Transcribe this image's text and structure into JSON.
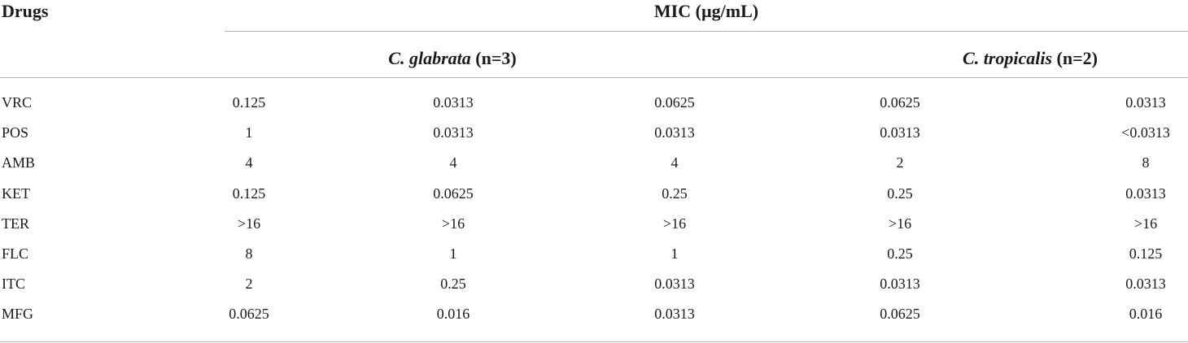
{
  "table": {
    "header": {
      "drugs_label": "Drugs",
      "mic_label": "MIC (µg/mL)",
      "groups": [
        {
          "species": "C. glabrata",
          "count": " (n=3)"
        },
        {
          "species": "C. tropicalis",
          "count": " (n=2)"
        }
      ]
    },
    "rows": [
      {
        "drug": "VRC",
        "values": [
          "0.125",
          "0.0313",
          "0.0625",
          "0.0625",
          "0.0313"
        ]
      },
      {
        "drug": "POS",
        "values": [
          "1",
          "0.0313",
          "0.0313",
          "0.0313",
          "<0.0313"
        ]
      },
      {
        "drug": "AMB",
        "values": [
          "4",
          "4",
          "4",
          "2",
          "8"
        ]
      },
      {
        "drug": "KET",
        "values": [
          "0.125",
          "0.0625",
          "0.25",
          "0.25",
          "0.0313"
        ]
      },
      {
        "drug": "TER",
        "values": [
          ">16",
          ">16",
          ">16",
          ">16",
          ">16"
        ]
      },
      {
        "drug": "FLC",
        "values": [
          "8",
          "1",
          "1",
          "0.25",
          "0.125"
        ]
      },
      {
        "drug": "ITC",
        "values": [
          "2",
          "0.25",
          "0.0313",
          "0.0313",
          "0.0313"
        ]
      },
      {
        "drug": "MFG",
        "values": [
          "0.0625",
          "0.016",
          "0.0313",
          "0.0625",
          "0.016"
        ]
      }
    ]
  }
}
